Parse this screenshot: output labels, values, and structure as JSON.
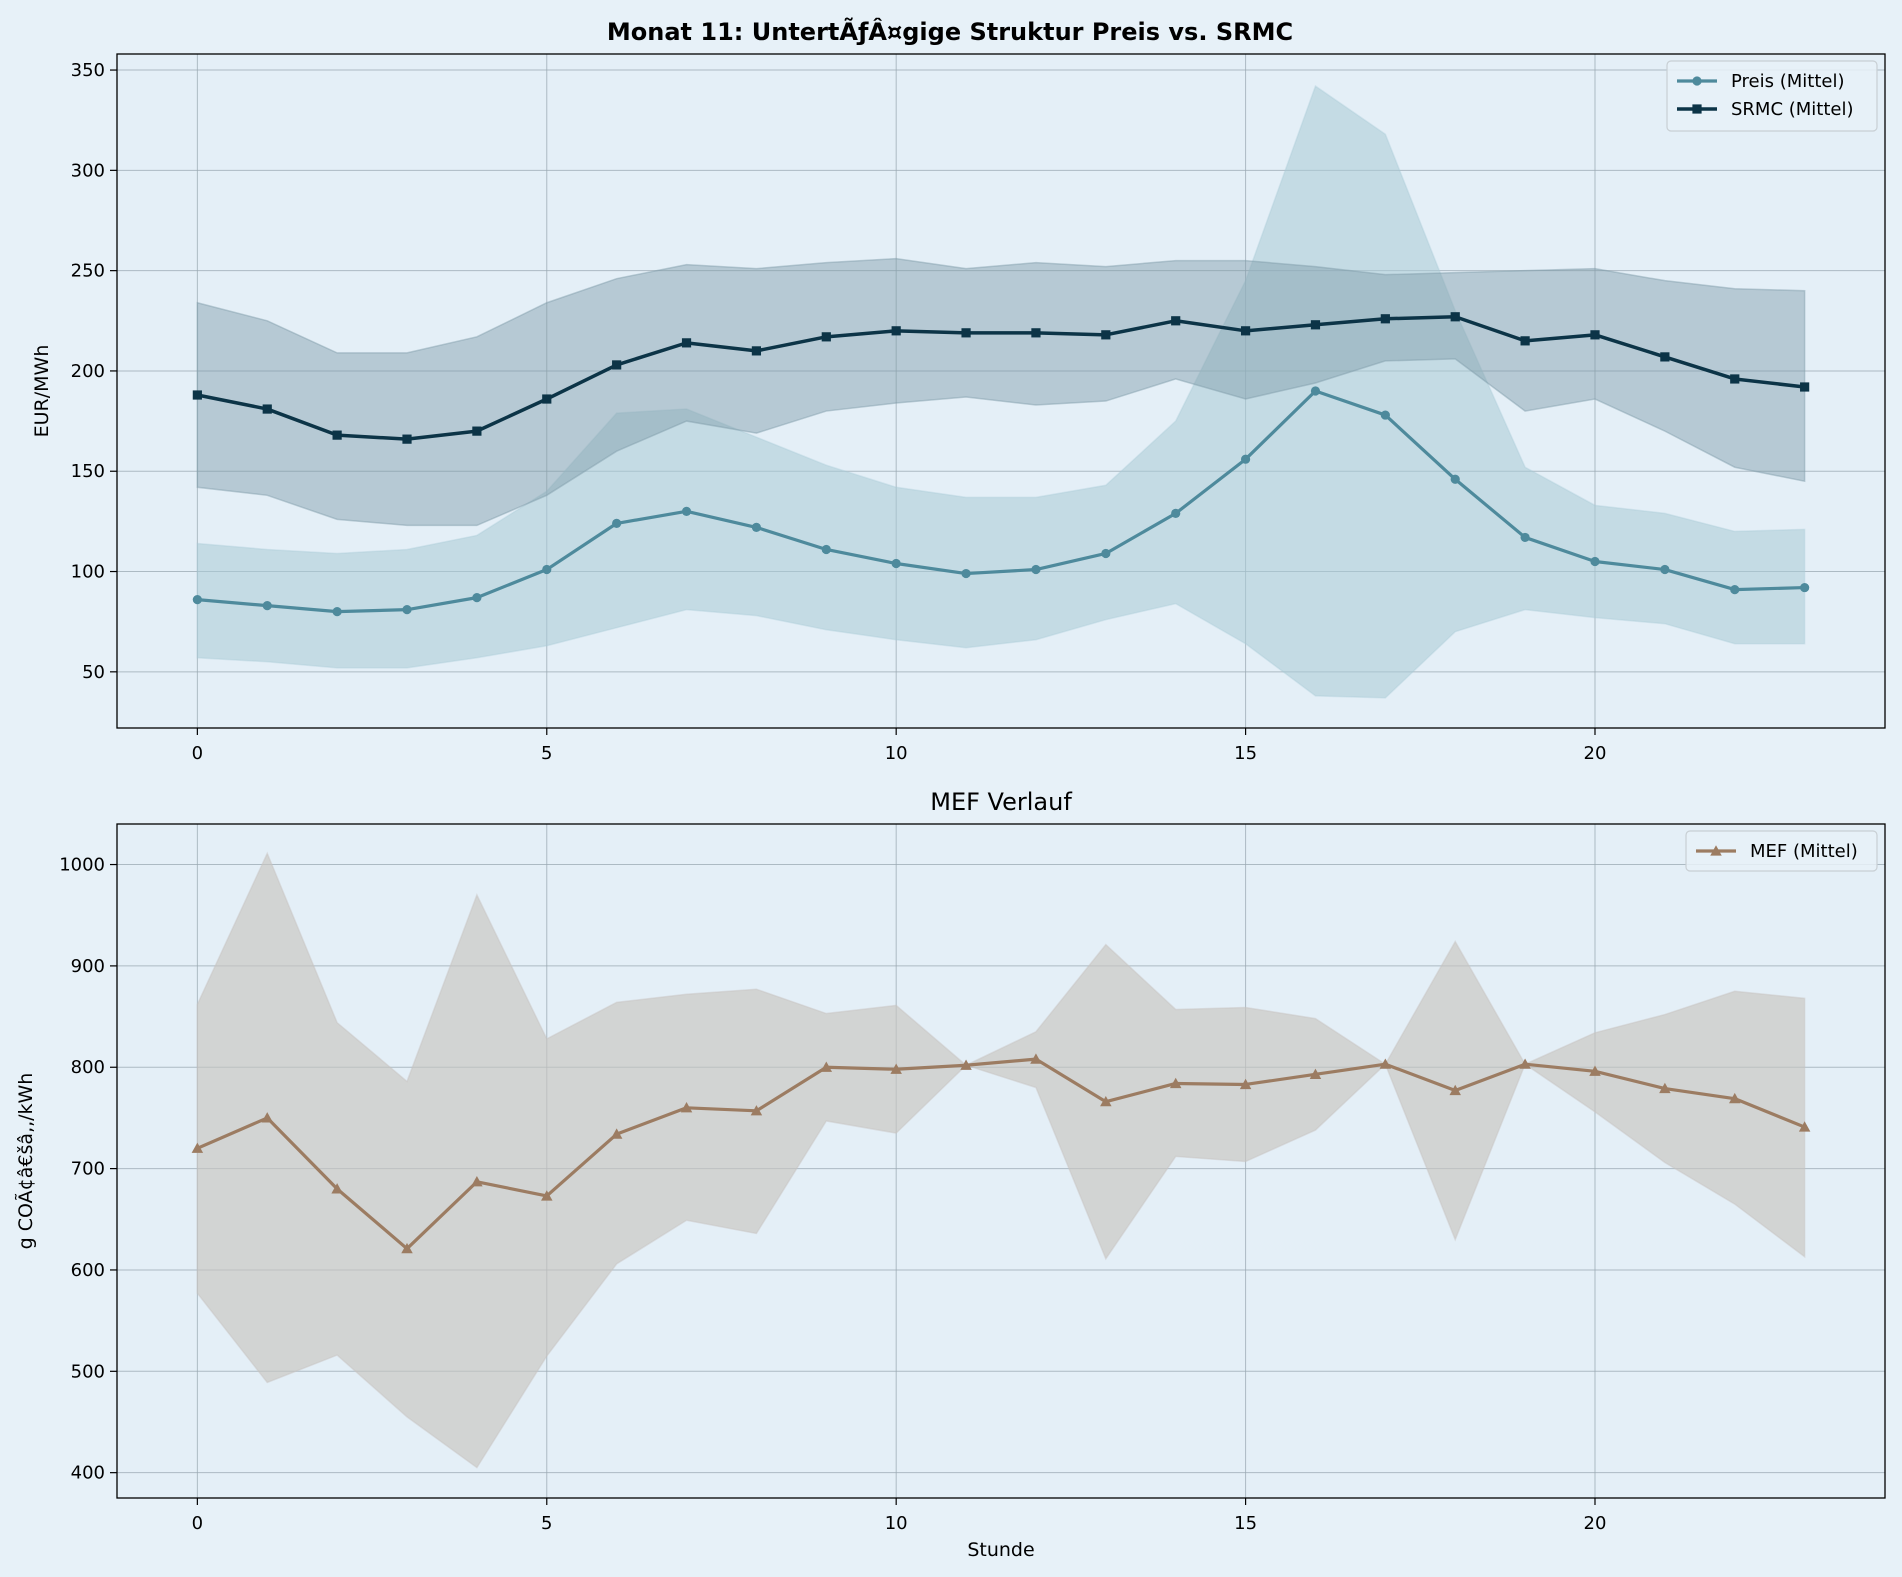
{
  "colors": {
    "background": "#e7f1f8",
    "price": "#4e8a9c",
    "price_band": "#a9cad6",
    "srmc": "#0c3447",
    "srmc_band": "#7f9ca9",
    "mef": "#9c7c62",
    "mef_band": "#c8c4c0",
    "grid": "#9aa8b2"
  },
  "chart_data": [
    {
      "type": "line",
      "title": "Monat 11: UntertÃƒÂ¤gige Struktur Preis vs. SRMC",
      "xlabel": "",
      "ylabel": "EUR/MWh",
      "xlim": [
        -1.15,
        24.15
      ],
      "ylim": [
        22,
        358
      ],
      "xticks": [
        0,
        5,
        10,
        15,
        20
      ],
      "yticks": [
        50,
        100,
        150,
        200,
        250,
        300,
        350
      ],
      "grid": true,
      "legend_position": "top-right",
      "x": [
        0,
        1,
        2,
        3,
        4,
        5,
        6,
        7,
        8,
        9,
        10,
        11,
        12,
        13,
        14,
        15,
        16,
        17,
        18,
        19,
        20,
        21,
        22,
        23
      ],
      "series": [
        {
          "name": "Preis (Mittel)",
          "marker": "circle",
          "values": [
            86,
            83,
            80,
            81,
            87,
            101,
            124,
            130,
            122,
            111,
            104,
            99,
            101,
            109,
            129,
            156,
            190,
            178,
            146,
            117,
            105,
            101,
            91,
            92
          ],
          "band_low": [
            57,
            55,
            52,
            52,
            57,
            63,
            72,
            81,
            78,
            71,
            66,
            62,
            66,
            76,
            84,
            64,
            38,
            37,
            70,
            81,
            77,
            74,
            64,
            64
          ],
          "band_high": [
            114,
            111,
            109,
            111,
            118,
            140,
            179,
            181,
            167,
            153,
            142,
            137,
            137,
            143,
            175,
            245,
            342,
            318,
            230,
            152,
            133,
            129,
            120,
            121
          ]
        },
        {
          "name": "SRMC (Mittel)",
          "marker": "square",
          "values": [
            188,
            181,
            168,
            166,
            170,
            186,
            203,
            214,
            210,
            217,
            220,
            219,
            219,
            218,
            225,
            220,
            223,
            226,
            227,
            215,
            218,
            207,
            196,
            192
          ],
          "band_low": [
            142,
            138,
            126,
            123,
            123,
            138,
            160,
            175,
            169,
            180,
            184,
            187,
            183,
            185,
            196,
            186,
            194,
            205,
            206,
            180,
            186,
            170,
            152,
            145
          ],
          "band_high": [
            234,
            225,
            209,
            209,
            217,
            234,
            246,
            253,
            251,
            254,
            256,
            251,
            254,
            252,
            255,
            255,
            252,
            248,
            249,
            250,
            251,
            245,
            241,
            240
          ]
        }
      ]
    },
    {
      "type": "line",
      "title": "MEF Verlauf",
      "xlabel": "Stunde",
      "ylabel": "g COÃ¢â€šâ‚‚/kWh",
      "xlim": [
        -1.15,
        24.15
      ],
      "ylim": [
        375,
        1040
      ],
      "xticks": [
        0,
        5,
        10,
        15,
        20
      ],
      "yticks": [
        400,
        500,
        600,
        700,
        800,
        900,
        1000
      ],
      "grid": true,
      "legend_position": "top-right",
      "x": [
        0,
        1,
        2,
        3,
        4,
        5,
        6,
        7,
        8,
        9,
        10,
        11,
        12,
        13,
        14,
        15,
        16,
        17,
        18,
        19,
        20,
        21,
        22,
        23
      ],
      "series": [
        {
          "name": "MEF (Mittel)",
          "marker": "triangle",
          "values": [
            720,
            750,
            680,
            621,
            687,
            673,
            734,
            760,
            757,
            800,
            798,
            802,
            808,
            766,
            784,
            783,
            793,
            803,
            777,
            803,
            796,
            779,
            769,
            741
          ],
          "band_low": [
            577,
            489,
            516,
            455,
            405,
            515,
            606,
            649,
            636,
            747,
            735,
            802,
            780,
            611,
            712,
            707,
            738,
            803,
            630,
            803,
            756,
            706,
            665,
            613
          ],
          "band_high": [
            862,
            1011,
            844,
            786,
            970,
            828,
            864,
            872,
            877,
            853,
            861,
            802,
            835,
            921,
            857,
            859,
            848,
            803,
            924,
            803,
            834,
            852,
            875,
            868
          ]
        }
      ]
    }
  ]
}
